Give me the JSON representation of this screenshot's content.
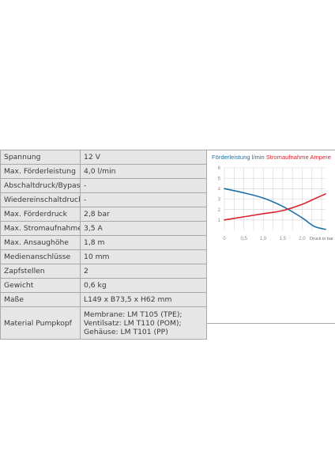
{
  "specs": {
    "rows": [
      {
        "label": "Spannung",
        "value": "12 V"
      },
      {
        "label": "Max. Förderleistung",
        "value": "4,0 l/min"
      },
      {
        "label": "Abschaltdruck/Bypass",
        "value": "-"
      },
      {
        "label": "Wiedereinschaltdruck",
        "value": "-"
      },
      {
        "label": "Max. Förderdruck",
        "value": "2,8 bar"
      },
      {
        "label": "Max. Stromaufnahme",
        "value": "3,5 A"
      },
      {
        "label": "Max. Ansaughöhe",
        "value": "1,8 m"
      },
      {
        "label": "Medienanschlüsse",
        "value": "10 mm"
      },
      {
        "label": "Zapfstellen",
        "value": "2"
      },
      {
        "label": "Gewicht",
        "value": "0,6 kg"
      },
      {
        "label": "Maße",
        "value": "L149 x B73,5 x H62 mm"
      },
      {
        "label": "Material Pumpkopf",
        "value": "Membrane: LM T105 (TPE); Ventilsatz: LM T110 (POM); Gehäuse: LM T101 (PP)"
      }
    ]
  },
  "chart_data": {
    "type": "line",
    "title_parts": [
      {
        "text": "Förderleistung l/min",
        "color": "#1e6fa8"
      },
      {
        "text": "Stromaufnahme Ampere",
        "color": "#d9232e"
      }
    ],
    "xlabel": "Druck in bar",
    "ylabel": "",
    "x_ticks": [
      "0",
      "0,5",
      "1,0",
      "1,5",
      "2,0"
    ],
    "x_tick_values": [
      0,
      0.5,
      1.0,
      1.5,
      2.0
    ],
    "y_ticks": [
      "1",
      "2",
      "3",
      "4",
      "5",
      "6"
    ],
    "y_tick_values": [
      1,
      2,
      3,
      4,
      5,
      6
    ],
    "xlim": [
      0,
      2.6
    ],
    "ylim": [
      0,
      6
    ],
    "grid": true,
    "series": [
      {
        "name": "Förderleistung l/min",
        "color": "#1e6fa8",
        "x": [
          0,
          0.5,
          1.0,
          1.5,
          2.0,
          2.3,
          2.6
        ],
        "y": [
          4.0,
          3.6,
          3.1,
          2.3,
          1.2,
          0.4,
          0.1
        ]
      },
      {
        "name": "Stromaufnahme Ampere",
        "color": "#d9232e",
        "x": [
          0,
          0.5,
          1.0,
          1.5,
          2.0,
          2.3,
          2.6
        ],
        "y": [
          1.0,
          1.3,
          1.6,
          1.9,
          2.5,
          3.0,
          3.5
        ]
      }
    ]
  }
}
